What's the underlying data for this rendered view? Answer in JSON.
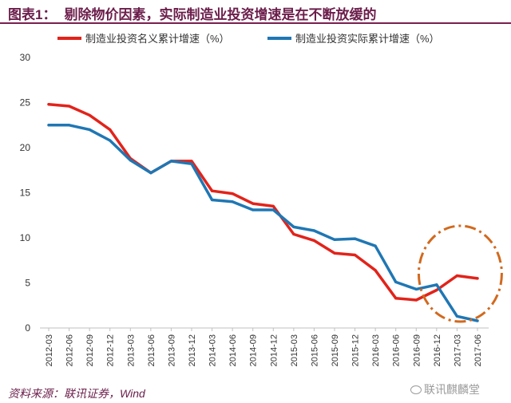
{
  "header": {
    "label": "图表1：",
    "title": "剔除物价因素，实际制造业投资增速是在不断放缓的"
  },
  "footer": {
    "source": "资料来源：联讯证券，Wind"
  },
  "watermark": {
    "text": "联讯麒麟堂",
    "icon": "wechat-icon"
  },
  "chart_data": {
    "type": "line",
    "title": "",
    "xlabel": "",
    "ylabel": "",
    "ylim": [
      0,
      30
    ],
    "yticks": [
      0,
      5,
      10,
      15,
      20,
      25,
      30
    ],
    "grid": false,
    "legend_position": "top",
    "categories": [
      "2012-03",
      "2012-06",
      "2012-09",
      "2012-12",
      "2013-03",
      "2013-06",
      "2013-09",
      "2013-12",
      "2014-03",
      "2014-06",
      "2014-09",
      "2014-12",
      "2015-03",
      "2015-06",
      "2015-09",
      "2015-12",
      "2016-03",
      "2016-06",
      "2016-09",
      "2016-12",
      "2017-03",
      "2017-06"
    ],
    "series": [
      {
        "name": "制造业投资名义累计增速（%）",
        "color": "#e2231a",
        "values": [
          24.8,
          24.6,
          23.6,
          22.0,
          18.8,
          17.2,
          18.5,
          18.5,
          15.2,
          14.9,
          13.8,
          13.5,
          10.4,
          9.7,
          8.3,
          8.1,
          6.4,
          3.3,
          3.1,
          4.2,
          5.8,
          5.5
        ]
      },
      {
        "name": "制造业投资实际累计增速（%）",
        "color": "#1f77b4",
        "values": [
          22.5,
          22.5,
          22.0,
          20.8,
          18.6,
          17.2,
          18.5,
          18.2,
          14.2,
          14.0,
          13.1,
          13.1,
          11.2,
          10.8,
          9.8,
          9.9,
          9.1,
          5.1,
          4.3,
          4.8,
          1.3,
          0.8
        ]
      }
    ],
    "highlight": {
      "shape": "ellipse",
      "style": "dash-dot",
      "color": "#d2691e",
      "covers_categories": [
        "2016-12",
        "2017-06"
      ]
    }
  }
}
